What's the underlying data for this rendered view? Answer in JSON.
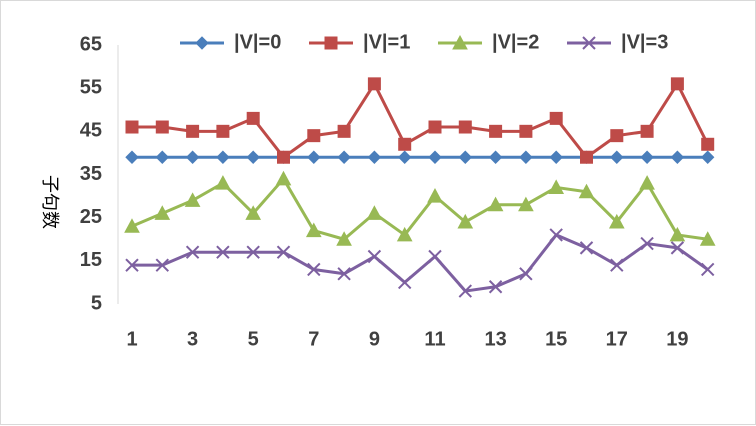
{
  "chart_data": {
    "type": "line",
    "title": "",
    "xlabel": "",
    "ylabel": "子句数",
    "x": [
      1,
      2,
      3,
      4,
      5,
      6,
      7,
      8,
      9,
      10,
      11,
      12,
      13,
      14,
      15,
      16,
      17,
      18,
      19,
      20
    ],
    "x_tick_labels": [
      "1",
      "3",
      "5",
      "7",
      "9",
      "11",
      "13",
      "15",
      "17",
      "19"
    ],
    "y_tick_labels": [
      "5",
      "15",
      "25",
      "35",
      "45",
      "55",
      "65"
    ],
    "ylim": [
      5,
      65
    ],
    "grid": false,
    "legend_position": "top",
    "series": [
      {
        "name": "|V|=0",
        "color": "#4a7ebb",
        "marker": "diamond",
        "values": [
          39,
          39,
          39,
          39,
          39,
          39,
          39,
          39,
          39,
          39,
          39,
          39,
          39,
          39,
          39,
          39,
          39,
          39,
          39,
          39
        ]
      },
      {
        "name": "|V|=1",
        "color": "#be4b48",
        "marker": "square",
        "values": [
          46,
          46,
          45,
          45,
          48,
          39,
          44,
          45,
          56,
          42,
          46,
          46,
          45,
          45,
          48,
          39,
          44,
          45,
          56,
          42
        ]
      },
      {
        "name": "|V|=2",
        "color": "#98b954",
        "marker": "triangle",
        "values": [
          23,
          26,
          29,
          33,
          26,
          34,
          22,
          20,
          26,
          21,
          30,
          24,
          28,
          28,
          32,
          31,
          24,
          33,
          21,
          20
        ]
      },
      {
        "name": "|V|=3",
        "color": "#7d60a0",
        "marker": "x",
        "values": [
          14,
          14,
          17,
          17,
          17,
          17,
          13,
          12,
          16,
          10,
          16,
          8,
          9,
          12,
          21,
          18,
          14,
          19,
          18,
          13
        ]
      }
    ]
  }
}
